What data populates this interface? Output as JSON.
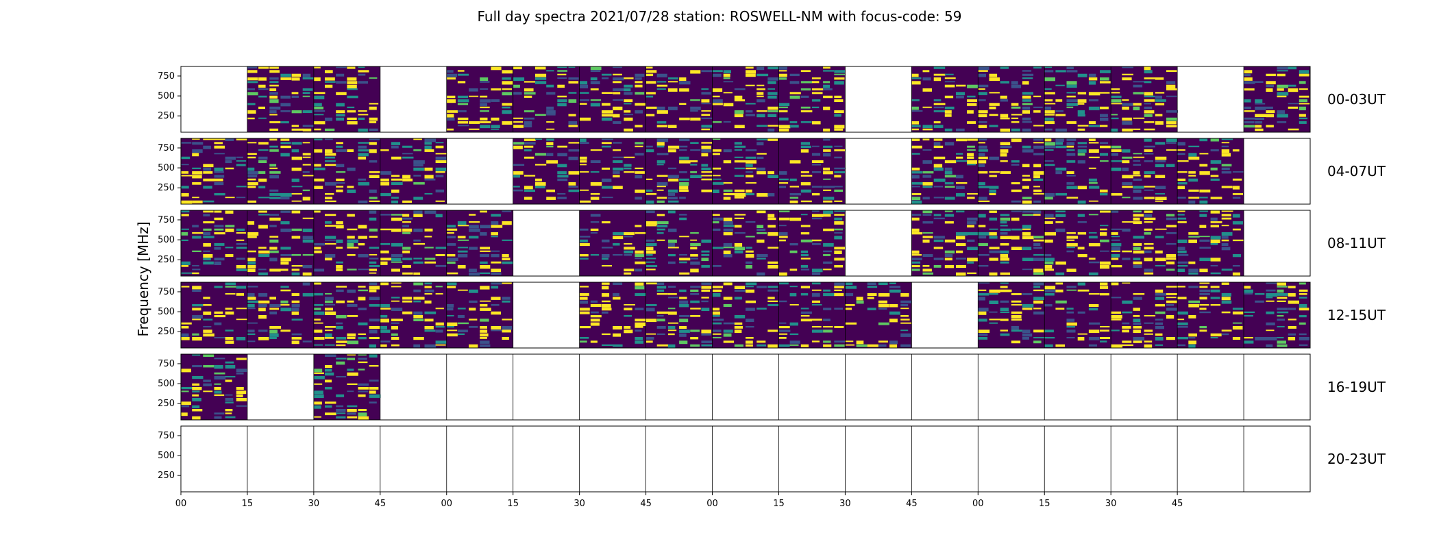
{
  "title": "Full day spectra 2021/07/28 station: ROSWELL-NM with focus-code: 59",
  "chart_data": {
    "type": "heatmap",
    "title": "Full day spectra 2021/07/28 station: ROSWELL-NM with focus-code: 59",
    "ylabel": "Frequency [MHz]",
    "xlabel": "",
    "ylim": [
      45,
      870
    ],
    "yticks": [
      250,
      500,
      750
    ],
    "xtick_labels": [
      "00",
      "15",
      "30",
      "45",
      "00",
      "15",
      "30",
      "45",
      "00",
      "15",
      "30",
      "45",
      "00",
      "15",
      "30",
      "45"
    ],
    "colormap": [
      "#440154",
      "#3b528b",
      "#21918c",
      "#5ec962",
      "#fde725"
    ],
    "rows": [
      {
        "label": "00-03UT",
        "filled": [
          0,
          1,
          1,
          0,
          1,
          1,
          1,
          1,
          1,
          1,
          0,
          1,
          1,
          1,
          1,
          0,
          1
        ]
      },
      {
        "label": "04-07UT",
        "filled": [
          1,
          1,
          1,
          1,
          0,
          1,
          1,
          1,
          1,
          1,
          0,
          1,
          1,
          1,
          1,
          1,
          0
        ]
      },
      {
        "label": "08-11UT",
        "filled": [
          1,
          1,
          1,
          1,
          1,
          0,
          1,
          1,
          1,
          1,
          0,
          1,
          1,
          1,
          1,
          1,
          0
        ]
      },
      {
        "label": "12-15UT",
        "filled": [
          1,
          1,
          1,
          1,
          1,
          0,
          1,
          1,
          1,
          1,
          1,
          0,
          1,
          1,
          1,
          1,
          1
        ]
      },
      {
        "label": "16-19UT",
        "filled": [
          1,
          0,
          1,
          0,
          0,
          0,
          0,
          0,
          0,
          0,
          0,
          0,
          0,
          0,
          0,
          0,
          0
        ]
      },
      {
        "label": "20-23UT",
        "filled": [
          0,
          0,
          0,
          0,
          0,
          0,
          0,
          0,
          0,
          0,
          0,
          0,
          0,
          0,
          0,
          0,
          0
        ]
      }
    ]
  }
}
